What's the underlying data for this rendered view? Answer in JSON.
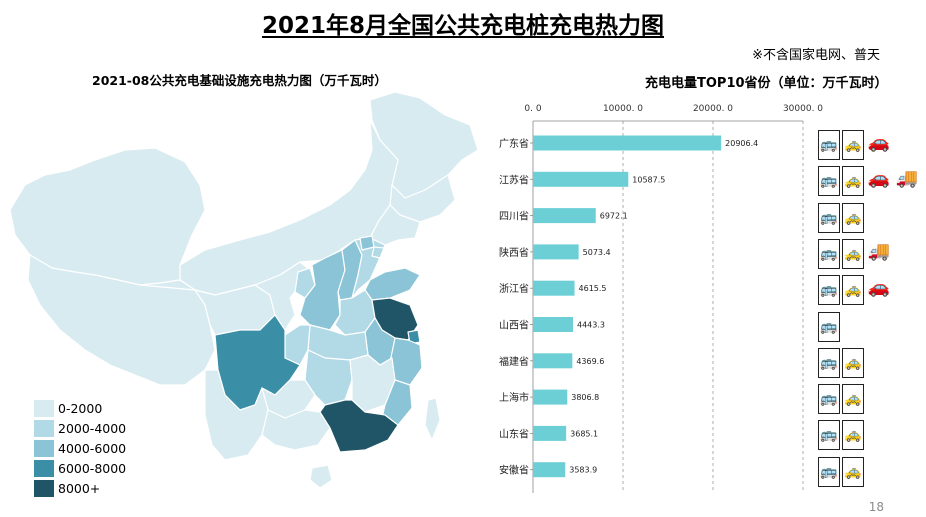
{
  "slide": {
    "title": "2021年8月全国公共充电桩充电热力图",
    "footnote": "※不含国家电网、普天",
    "page_number": "18"
  },
  "map": {
    "title": "2021-08公共充电基础设施充电热力图（万千瓦时）",
    "legend": [
      {
        "label": "0-2000",
        "color": "#d7ebf1"
      },
      {
        "label": "2000-4000",
        "color": "#b1d9e6"
      },
      {
        "label": "4000-6000",
        "color": "#8ac4d6"
      },
      {
        "label": "6000-8000",
        "color": "#3a8ea6"
      },
      {
        "label": "8000+",
        "color": "#1f5566"
      }
    ]
  },
  "chart_data": {
    "type": "bar",
    "orientation": "horizontal",
    "title": "充电电量TOP10省份（单位：万千瓦时）",
    "categories": [
      "广东省",
      "江苏省",
      "四川省",
      "陕西省",
      "浙江省",
      "山西省",
      "福建省",
      "上海市",
      "山东省",
      "安徽省"
    ],
    "values": [
      20906.4,
      10587.5,
      6972.1,
      5073.4,
      4615.5,
      4443.3,
      4369.6,
      3806.8,
      3685.1,
      3583.9
    ],
    "value_labels": [
      "20906.4",
      "10587.5",
      "6972.1",
      "5073.4",
      "4615.5",
      "4443.3",
      "4369.6",
      "3806.8",
      "3685.1",
      "3583.9"
    ],
    "xlim": [
      0,
      30000
    ],
    "xticks": [
      0,
      10000,
      20000,
      30000
    ],
    "xtick_labels": [
      "0. 0",
      "10000. 0",
      "20000. 0",
      "30000. 0"
    ],
    "axis_position": "top",
    "grid": "vertical dashed",
    "bar_color": "#6ccfd6"
  },
  "vehicle_icons": {
    "legend": "none",
    "rows": [
      [
        "bus-icon",
        "taxi-icon",
        "car-icon"
      ],
      [
        "bus-icon",
        "taxi-icon",
        "car-icon",
        "truck-icon"
      ],
      [
        "bus-icon",
        "taxi-icon"
      ],
      [
        "bus-icon",
        "taxi-icon",
        "truck-icon"
      ],
      [
        "bus-icon",
        "taxi-icon",
        "car-icon"
      ],
      [
        "bus-icon"
      ],
      [
        "bus-icon",
        "taxi-icon"
      ],
      [
        "bus-icon",
        "taxi-icon"
      ],
      [
        "bus-icon",
        "taxi-icon"
      ],
      [
        "bus-icon",
        "taxi-icon"
      ]
    ]
  }
}
